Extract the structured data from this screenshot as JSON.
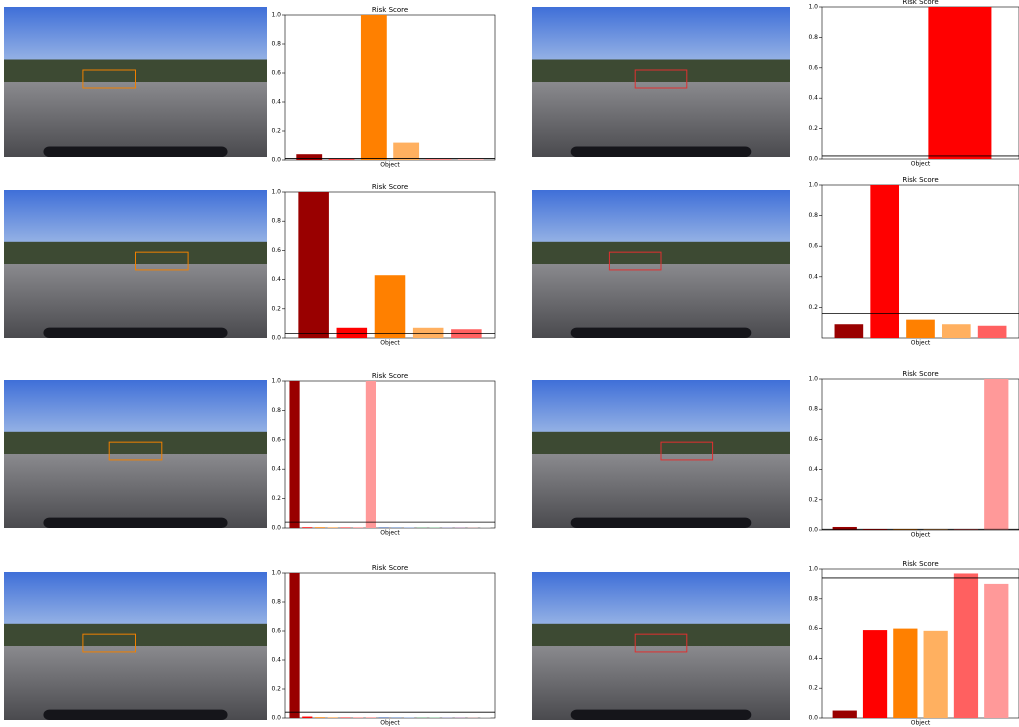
{
  "chart_data": [
    {
      "type": "bar",
      "title": "Risk Score",
      "xlabel": "Object",
      "values": [
        0.04,
        0.005,
        1.0,
        0.12,
        0.005,
        0.005
      ],
      "colors": [
        "#990000",
        "#ff0000",
        "#ff8000",
        "#ffb060",
        "#ff6060",
        "#ff9999"
      ],
      "threshold": 0.01,
      "ylim": [
        0,
        1
      ],
      "yticks": [
        {
          "value": 0,
          "label": "0.0"
        },
        {
          "value": 0.2,
          "label": "0.2"
        },
        {
          "value": 0.4,
          "label": "0.4"
        },
        {
          "value": 0.6,
          "label": "0.6"
        },
        {
          "value": 0.8,
          "label": "0.8"
        },
        {
          "value": 1,
          "label": "1.0"
        }
      ]
    },
    {
      "type": "bar",
      "title": "Risk Score",
      "xlabel": "Object",
      "values": [
        0,
        1.0
      ],
      "colors": [
        "#990000",
        "#ff0000"
      ],
      "threshold": 0.02,
      "ylim": [
        0,
        1
      ],
      "yticks": [
        {
          "value": 0,
          "label": "0.0"
        },
        {
          "value": 0.2,
          "label": "0.2"
        },
        {
          "value": 0.4,
          "label": "0.4"
        },
        {
          "value": 0.6,
          "label": "0.6"
        },
        {
          "value": 0.8,
          "label": "0.8"
        },
        {
          "value": 1,
          "label": "1.0"
        }
      ]
    },
    {
      "type": "bar",
      "title": "Risk Score",
      "xlabel": "Object",
      "values": [
        1.0,
        0.07,
        0.43,
        0.07,
        0.06
      ],
      "colors": [
        "#990000",
        "#ff0000",
        "#ff8000",
        "#ffb060",
        "#ff6060"
      ],
      "threshold": 0.03,
      "ylim": [
        0,
        1
      ],
      "yticks": [
        {
          "value": 0,
          "label": "0.0"
        },
        {
          "value": 0.2,
          "label": "0.2"
        },
        {
          "value": 0.4,
          "label": "0.4"
        },
        {
          "value": 0.6,
          "label": "0.6"
        },
        {
          "value": 0.8,
          "label": "0.8"
        },
        {
          "value": 1,
          "label": "1.0"
        }
      ]
    },
    {
      "type": "bar",
      "title": "Risk Score",
      "xlabel": "Object",
      "values": [
        0.09,
        1.0,
        0.12,
        0.09,
        0.08
      ],
      "colors": [
        "#990000",
        "#ff0000",
        "#ff8000",
        "#ffb060",
        "#ff6060"
      ],
      "threshold": 0.16,
      "ylim": [
        0,
        1
      ],
      "yticks": [
        {
          "value": 0.2,
          "label": "0.2"
        },
        {
          "value": 0.4,
          "label": "0.4"
        },
        {
          "value": 0.6,
          "label": "0.6"
        },
        {
          "value": 0.8,
          "label": "0.8"
        },
        {
          "value": 1,
          "label": "1.0"
        }
      ]
    },
    {
      "type": "bar",
      "title": "Risk Score",
      "xlabel": "Object",
      "values": [
        1.0,
        0.005,
        0.005,
        0.005,
        0.005,
        0.005,
        1.0,
        0.005,
        0.005,
        0.005,
        0.005,
        0.005,
        0.005,
        0.005,
        0.005,
        0.005
      ],
      "colors": [
        "#990000",
        "#ff0000",
        "#ff8000",
        "#ffb060",
        "#ff6060",
        "#ff9999",
        "#ff9999",
        "#6080c0",
        "#80a0d0",
        "#a0b8e0",
        "#90c0a0",
        "#a0d0b0",
        "#b0b0d0",
        "#c0a0c0",
        "#d0b0b0",
        "#c0c0c0"
      ],
      "threshold": 0.04,
      "ylim": [
        0,
        1
      ],
      "yticks": [
        {
          "value": 0,
          "label": "0.0"
        },
        {
          "value": 0.2,
          "label": "0.2"
        },
        {
          "value": 0.4,
          "label": "0.4"
        },
        {
          "value": 0.6,
          "label": "0.6"
        },
        {
          "value": 0.8,
          "label": "0.8"
        },
        {
          "value": 1,
          "label": "1.0"
        }
      ]
    },
    {
      "type": "bar",
      "title": "Risk Score",
      "xlabel": "Object",
      "values": [
        0.02,
        0.005,
        0.005,
        0.005,
        0.005,
        1.0
      ],
      "colors": [
        "#990000",
        "#ff0000",
        "#ff8000",
        "#ffb060",
        "#ff6060",
        "#ff9999"
      ],
      "threshold": 0.005,
      "ylim": [
        0,
        1
      ],
      "yticks": [
        {
          "value": 0,
          "label": "0.0"
        },
        {
          "value": 0.2,
          "label": "0.2"
        },
        {
          "value": 0.4,
          "label": "0.4"
        },
        {
          "value": 0.6,
          "label": "0.6"
        },
        {
          "value": 0.8,
          "label": "0.8"
        },
        {
          "value": 1,
          "label": "1.0"
        }
      ]
    },
    {
      "type": "bar",
      "title": "Risk Score",
      "xlabel": "Object",
      "values": [
        1.0,
        0.01,
        0.005,
        0.005,
        0.005,
        0.005,
        0.005,
        0.005,
        0.005,
        0.005,
        0.005,
        0.005,
        0.005,
        0.005,
        0.005,
        0.005
      ],
      "colors": [
        "#990000",
        "#ff0000",
        "#ff8000",
        "#ffb060",
        "#ff6060",
        "#ff9999",
        "#ff9999",
        "#6080c0",
        "#80a0d0",
        "#a0b8e0",
        "#90c0a0",
        "#a0d0b0",
        "#b0b0d0",
        "#c0a0c0",
        "#d0b0b0",
        "#c0c0c0"
      ],
      "threshold": 0.04,
      "ylim": [
        0,
        1
      ],
      "yticks": [
        {
          "value": 0,
          "label": "0.0"
        },
        {
          "value": 0.2,
          "label": "0.2"
        },
        {
          "value": 0.4,
          "label": "0.4"
        },
        {
          "value": 0.6,
          "label": "0.6"
        },
        {
          "value": 0.8,
          "label": "0.8"
        },
        {
          "value": 1,
          "label": "1.0"
        }
      ]
    },
    {
      "type": "bar",
      "title": "Risk Score",
      "xlabel": "Object",
      "values": [
        0.05,
        0.59,
        0.6,
        0.585,
        0.97,
        0.9
      ],
      "colors": [
        "#990000",
        "#ff0000",
        "#ff8000",
        "#ffb060",
        "#ff6060",
        "#ff9999"
      ],
      "threshold": 0.94,
      "ylim": [
        0,
        1
      ],
      "yticks": [
        {
          "value": 0,
          "label": "0.0"
        },
        {
          "value": 0.2,
          "label": "0.2"
        },
        {
          "value": 0.4,
          "label": "0.4"
        },
        {
          "value": 0.6,
          "label": "0.6"
        },
        {
          "value": 0.8,
          "label": "0.8"
        },
        {
          "value": 1,
          "label": "1.0"
        }
      ]
    }
  ]
}
